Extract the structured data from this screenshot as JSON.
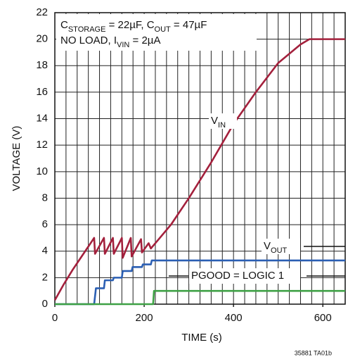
{
  "chart_data": {
    "type": "line",
    "xlabel": "TIME (s)",
    "ylabel": "VOLTAGE (V)",
    "xlim": [
      0,
      650
    ],
    "ylim": [
      0,
      22
    ],
    "xticks": [
      0,
      200,
      400,
      600
    ],
    "yticks": [
      0,
      2,
      4,
      6,
      8,
      10,
      12,
      14,
      16,
      18,
      20,
      22
    ],
    "xgrid": [
      0,
      25,
      50,
      75,
      100,
      125,
      150,
      175,
      200,
      225,
      250,
      275,
      300,
      325,
      350,
      375,
      400,
      425,
      450,
      475,
      500,
      525,
      550,
      575,
      600,
      625,
      650
    ],
    "grid": true,
    "series": [
      {
        "name_parts": [
          {
            "text": "V"
          },
          {
            "text": "IN",
            "sub": true
          }
        ],
        "color": "#a3203c",
        "x": [
          0,
          20,
          40,
          60,
          88,
          90,
          110,
          112,
          130,
          132,
          150,
          152,
          170,
          172,
          193,
          195,
          210,
          215,
          230,
          260,
          300,
          350,
          400,
          450,
          500,
          550,
          570,
          650
        ],
        "values": [
          0.3,
          1.5,
          2.6,
          3.6,
          5,
          3.8,
          5,
          3.8,
          5,
          3.8,
          5,
          3.5,
          5,
          3.6,
          4.9,
          3.9,
          4.6,
          4.2,
          4.8,
          6,
          8,
          10.7,
          13.6,
          16,
          18.2,
          19.6,
          20,
          20
        ]
      },
      {
        "name_parts": [
          {
            "text": "V"
          },
          {
            "text": "OUT",
            "sub": true
          }
        ],
        "color": "#2b5fb3",
        "x": [
          0,
          88,
          92,
          110,
          112,
          130,
          132,
          150,
          152,
          172,
          174,
          195,
          197,
          215,
          217,
          650
        ],
        "values": [
          0,
          0,
          1.2,
          1.2,
          1.8,
          1.8,
          2.0,
          2.0,
          2.5,
          2.5,
          2.8,
          2.8,
          3.0,
          3.0,
          3.3,
          3.3
        ]
      },
      {
        "name_parts": [
          {
            "text": "PGOOD = LOGIC 1"
          }
        ],
        "color": "#3ea145",
        "x": [
          0,
          220,
          222,
          650
        ],
        "values": [
          0,
          0,
          1,
          1
        ]
      }
    ],
    "annotations": [
      {
        "parts": [
          {
            "text": "C"
          },
          {
            "text": "STORAGE",
            "sub": true
          },
          {
            "text": " = 22µF, C"
          },
          {
            "text": "OUT",
            "sub": true
          },
          {
            "text": " = 47µF"
          }
        ]
      },
      {
        "parts": [
          {
            "text": "NO LOAD, I"
          },
          {
            "text": "VIN",
            "sub": true
          },
          {
            "text": " = 2µA"
          }
        ]
      }
    ],
    "footnote": "35881 TA01b"
  }
}
